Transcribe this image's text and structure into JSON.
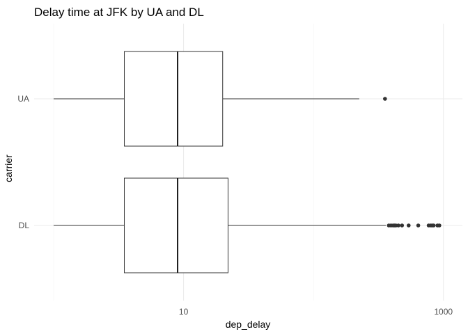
{
  "chart_data": {
    "type": "boxplot",
    "orientation": "horizontal",
    "title": "Delay time at JFK by UA and DL",
    "xlabel": "dep_delay",
    "ylabel": "carrier",
    "x_scale": "log10",
    "x_range": [
      1,
      1400
    ],
    "x_ticks": [
      10,
      1000
    ],
    "x_tick_labels": [
      "10",
      "1000"
    ],
    "grid": true,
    "legend": "none",
    "categories": [
      "DL",
      "UA"
    ],
    "series": [
      {
        "category": "DL",
        "whisker_low": 1,
        "q1": 3.5,
        "median": 9,
        "q3": 22,
        "whisker_high": 360,
        "outliers": [
          380,
          395,
          410,
          420,
          430,
          450,
          480,
          540,
          640,
          770,
          800,
          820,
          840,
          900,
          930
        ]
      },
      {
        "category": "UA",
        "whisker_low": 1,
        "q1": 3.5,
        "median": 9,
        "q3": 20,
        "whisker_high": 225,
        "outliers": [
          355
        ]
      }
    ]
  }
}
